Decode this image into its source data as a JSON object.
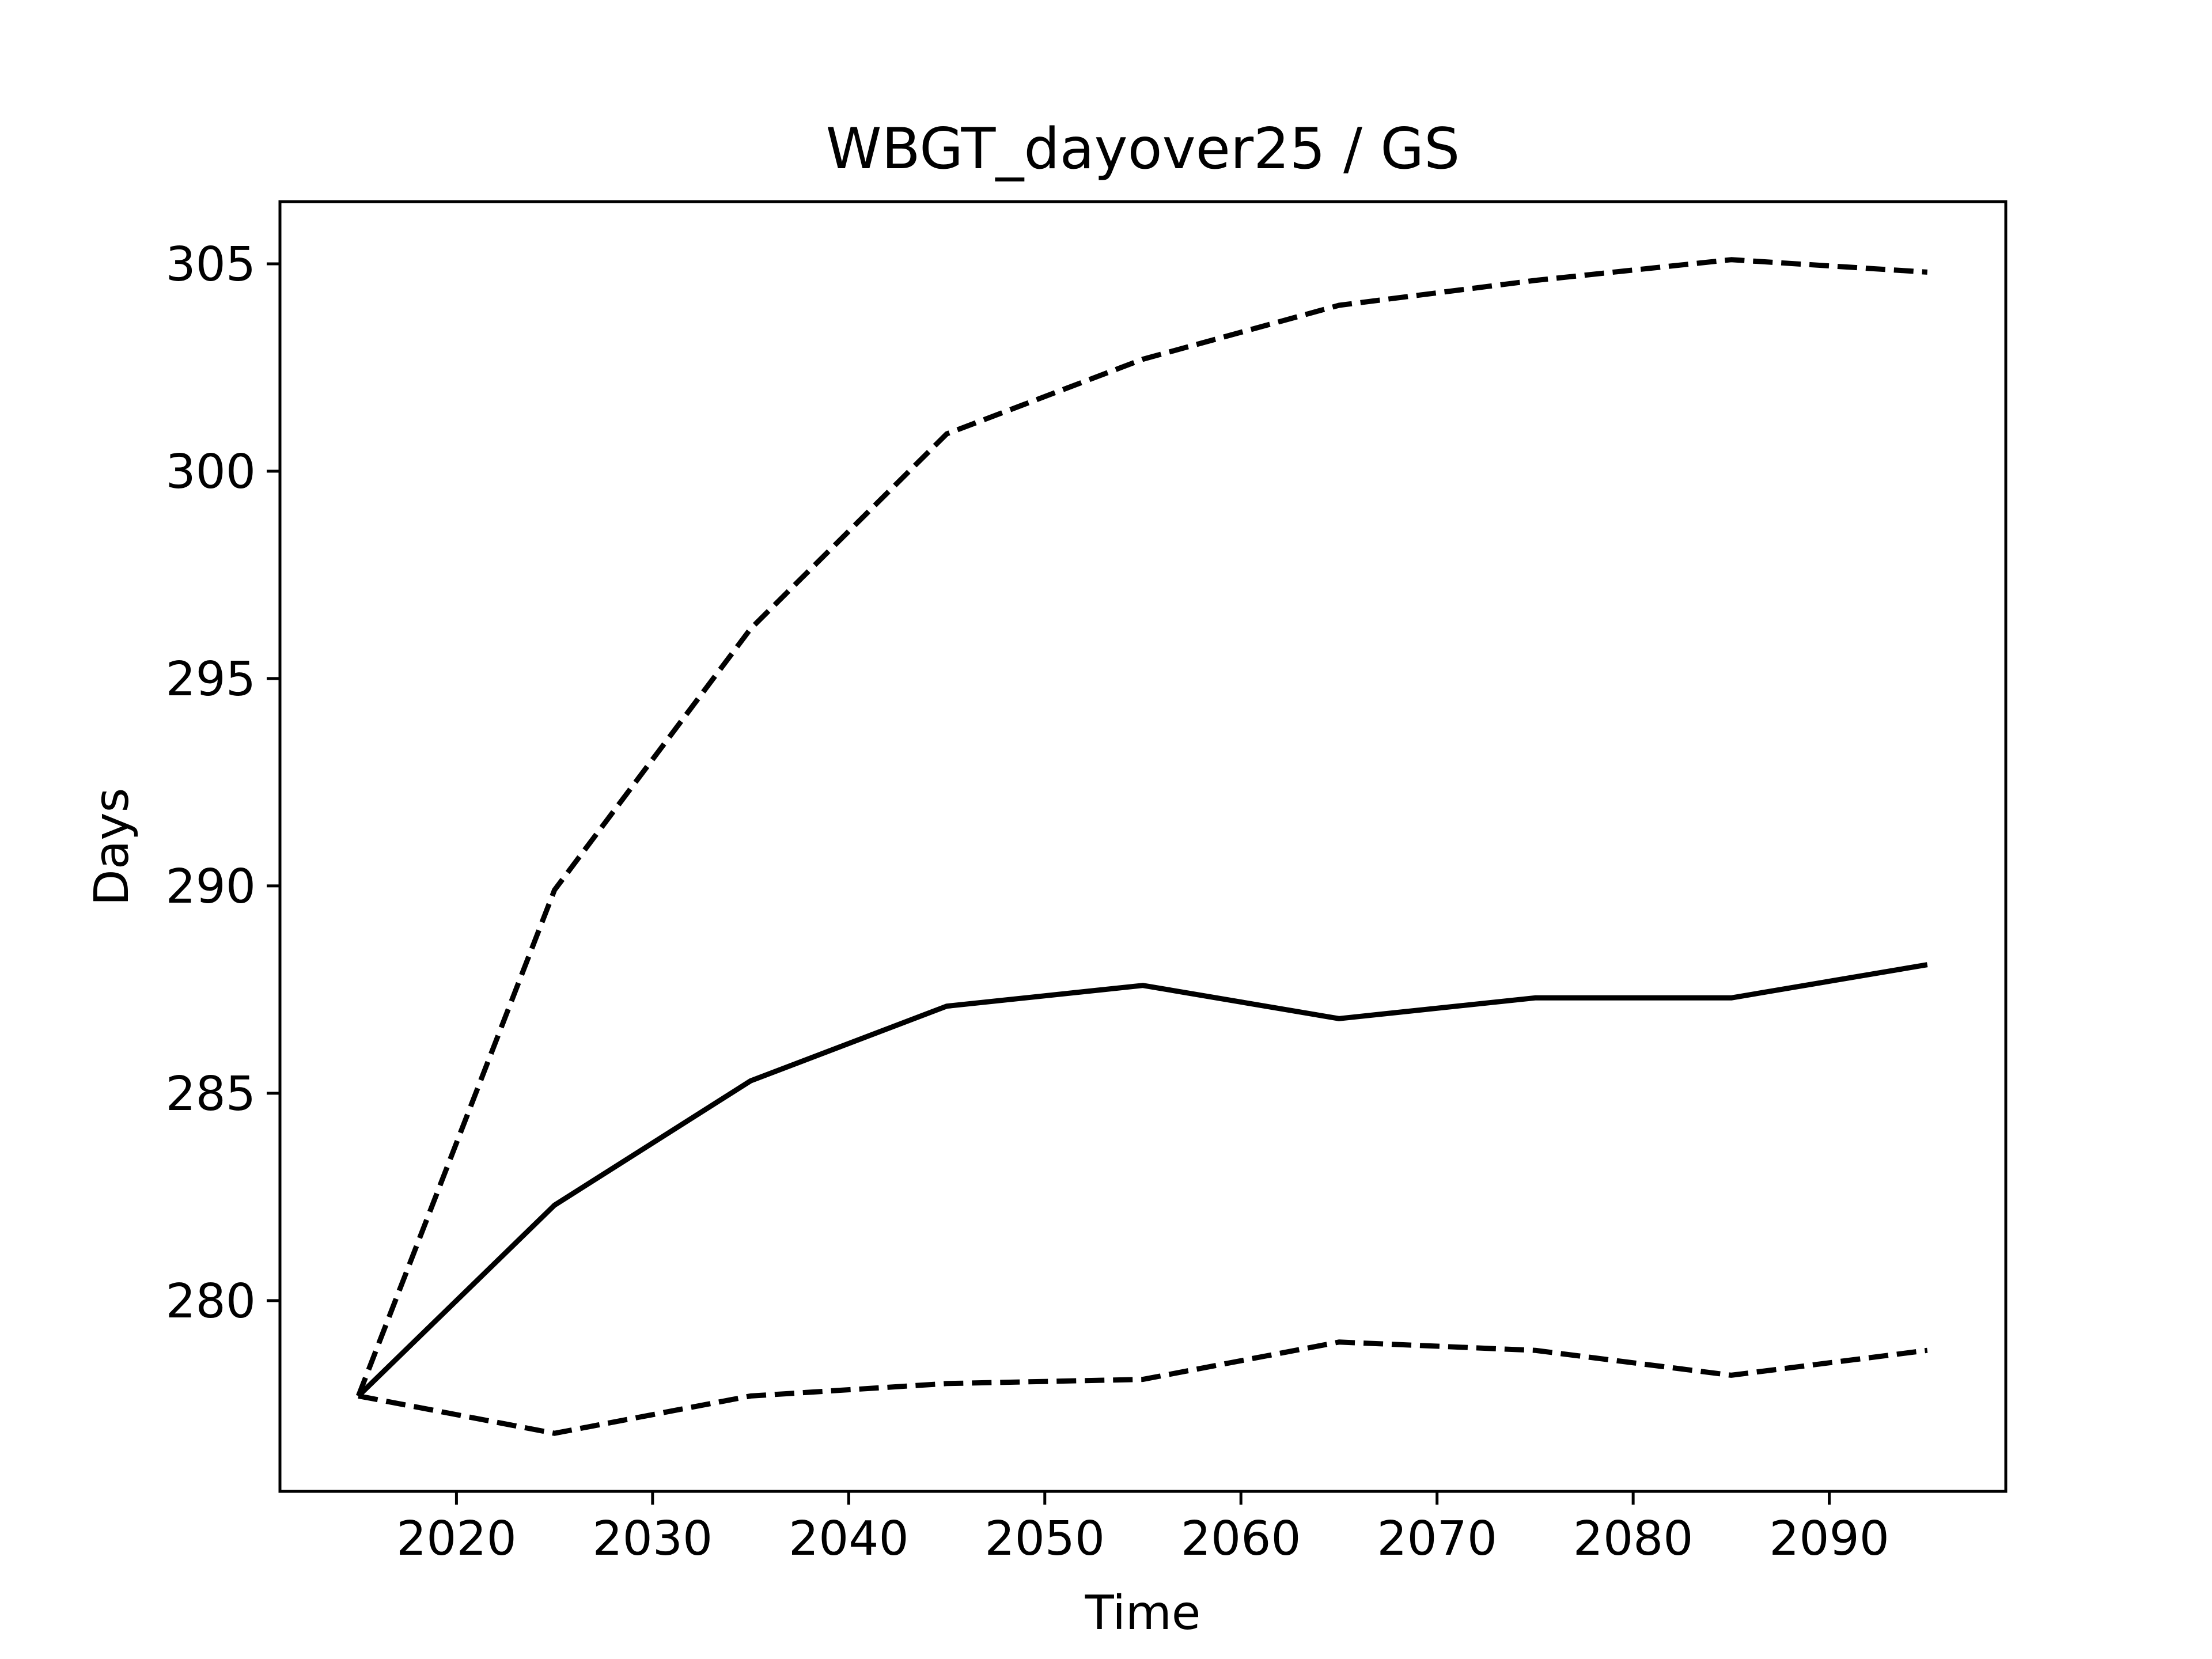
{
  "chart_data": {
    "type": "line",
    "title": "WBGT_dayover25 / GS",
    "xlabel": "Time",
    "ylabel": "Days",
    "xlim": [
      2011,
      2099
    ],
    "ylim": [
      275.4,
      306.5
    ],
    "xticks": [
      2020,
      2030,
      2040,
      2050,
      2060,
      2070,
      2080,
      2090
    ],
    "yticks": [
      280,
      285,
      290,
      295,
      300,
      305
    ],
    "grid": false,
    "legend": "none",
    "x": [
      2015,
      2025,
      2035,
      2045,
      2055,
      2065,
      2075,
      2085,
      2095
    ],
    "series": [
      {
        "style": "solid",
        "color": "#000000",
        "values": [
          277.7,
          282.3,
          285.3,
          287.1,
          287.6,
          286.8,
          287.3,
          287.3,
          288.1
        ]
      },
      {
        "style": "dashed",
        "color": "#000000",
        "values": [
          277.7,
          289.9,
          296.2,
          300.9,
          302.7,
          304.0,
          304.6,
          305.1,
          304.8
        ]
      },
      {
        "style": "dashed",
        "color": "#000000",
        "values": [
          277.7,
          276.8,
          277.7,
          278.0,
          278.1,
          279.0,
          278.8,
          278.2,
          278.8
        ]
      }
    ]
  }
}
